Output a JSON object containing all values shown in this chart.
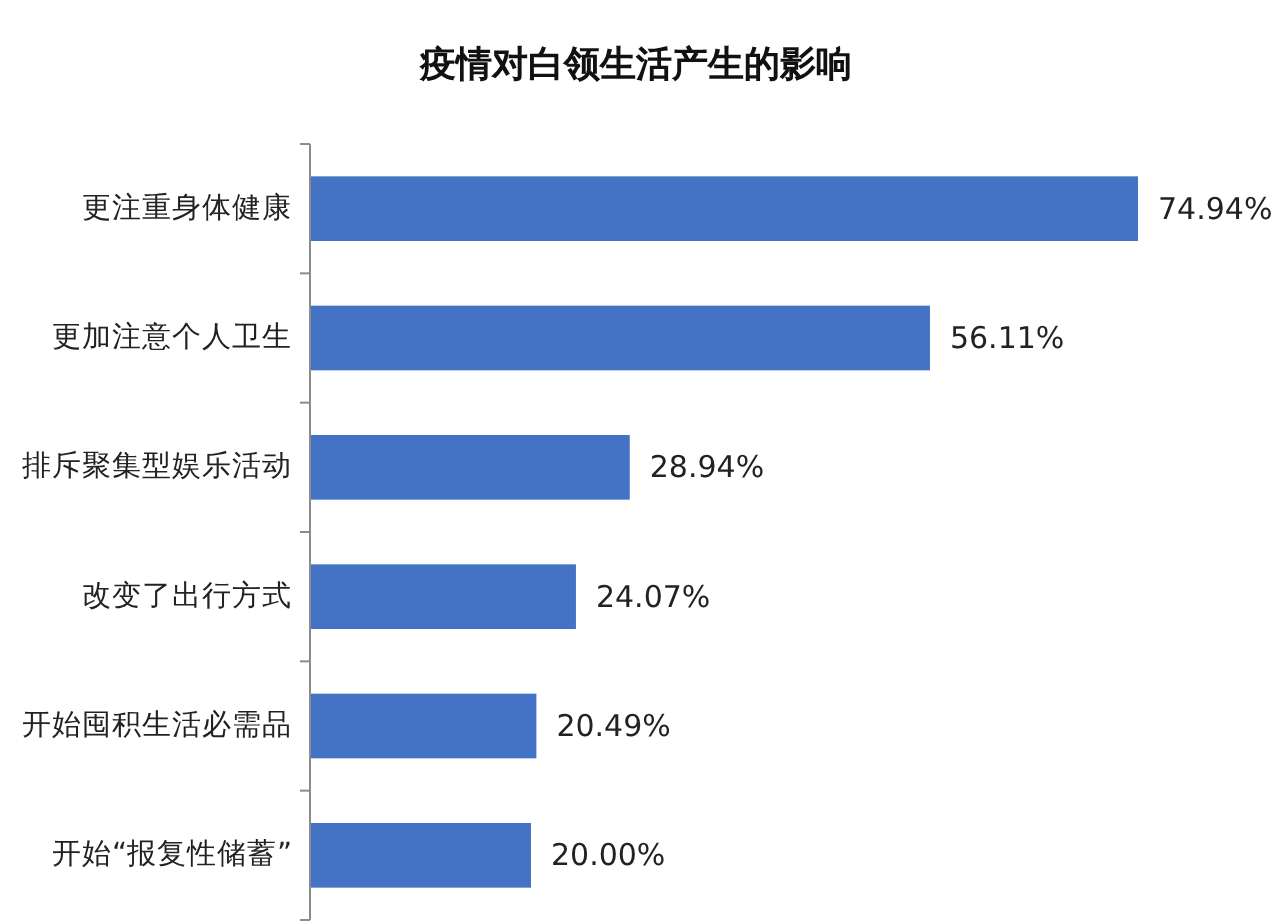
{
  "chart_data": {
    "type": "bar",
    "orientation": "horizontal",
    "title": "疫情对白领生活产生的影响",
    "categories": [
      "更注重身体健康",
      "更加注意个人卫生",
      "排斥聚集型娱乐活动",
      "改变了出行方式",
      "开始囤积生活必需品",
      "开始“报复性储蓄”"
    ],
    "values": [
      74.94,
      56.11,
      28.94,
      24.07,
      20.49,
      20.0
    ],
    "value_labels": [
      "74.94%",
      "56.11%",
      "28.94%",
      "24.07%",
      "20.49%",
      "20.00%"
    ],
    "color": "#4472c4"
  }
}
